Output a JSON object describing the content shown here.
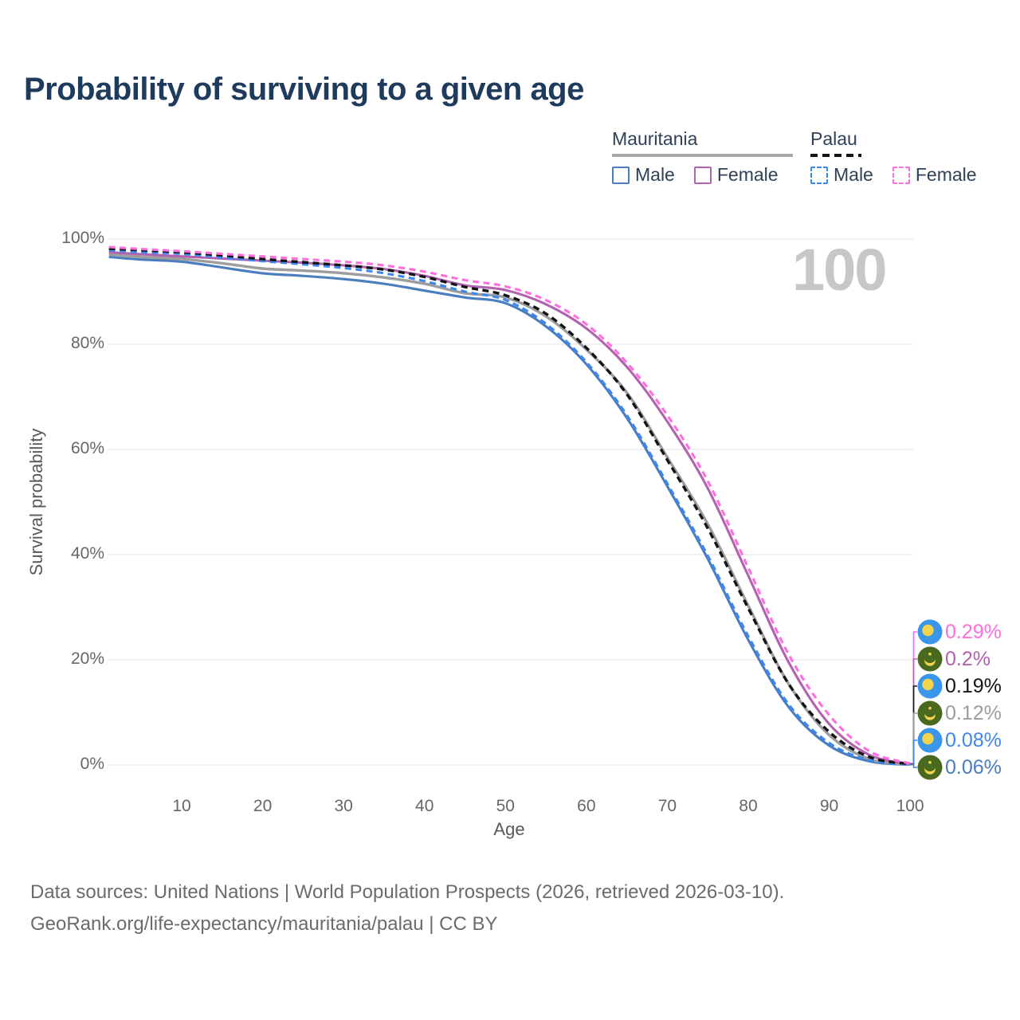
{
  "title": "Probability of surviving to a given age",
  "watermark": "100",
  "legend": {
    "groups": [
      {
        "country": "Mauritania",
        "line_style": "solid",
        "underline_color": "#a8a8a8",
        "items": [
          {
            "label": "Male",
            "color": "#4a7dbe"
          },
          {
            "label": "Female",
            "color": "#b163af"
          }
        ]
      },
      {
        "country": "Palau",
        "line_style": "dashed",
        "underline_color": "#141414",
        "items": [
          {
            "label": "Male",
            "color": "#3e86f0"
          },
          {
            "label": "Female",
            "color": "#ff6ede"
          }
        ]
      }
    ]
  },
  "y_axis": {
    "title": "Survival probability",
    "ticks": [
      "100%",
      "80%",
      "60%",
      "40%",
      "20%",
      "0%"
    ]
  },
  "x_axis": {
    "title": "Age",
    "ticks": [
      "10",
      "20",
      "30",
      "40",
      "50",
      "60",
      "70",
      "80",
      "90",
      "100"
    ]
  },
  "annotations": [
    {
      "flag": "palau",
      "series": "Palau Female",
      "label": "0.29%",
      "color": "#ff6ede"
    },
    {
      "flag": "mauritania",
      "series": "Mauritania Female",
      "label": "0.2%",
      "color": "#b163af"
    },
    {
      "flag": "palau",
      "series": "Palau Both sexes",
      "label": "0.19%",
      "color": "#141414"
    },
    {
      "flag": "mauritania",
      "series": "Mauritania Both sexes",
      "label": "0.12%",
      "color": "#9d9d9d"
    },
    {
      "flag": "palau",
      "series": "Palau Male",
      "label": "0.08%",
      "color": "#3e86f0"
    },
    {
      "flag": "mauritania",
      "series": "Mauritania Male",
      "label": "0.06%",
      "color": "#4a7dbe"
    }
  ],
  "footer": {
    "line1": "Data sources: United Nations | World Population Prospects (2026, retrieved 2026-03-10).",
    "line2": "GeoRank.org/life-expectancy/mauritania/palau | CC BY"
  },
  "flag_colors": {
    "palau_blue": "#3a96e8",
    "mauritania_green": "#48691e",
    "yellow": "#f5d44d"
  },
  "chart_data": {
    "type": "line",
    "title": "Probability of surviving to a given age",
    "xlabel": "Age",
    "ylabel": "Survival probability",
    "xlim": [
      0,
      100
    ],
    "ylim": [
      0,
      100
    ],
    "grid": "horizontal",
    "legend_position": "top-right",
    "x_ages": [
      1,
      5,
      10,
      15,
      20,
      25,
      30,
      35,
      40,
      45,
      50,
      55,
      60,
      65,
      70,
      75,
      80,
      85,
      90,
      95,
      100
    ],
    "series": [
      {
        "name": "Mauritania Male",
        "country": "Mauritania",
        "sex": "Male",
        "style": "solid",
        "color": "#4a7dbe",
        "values_pct": [
          96.6,
          96.1,
          95.7,
          94.6,
          93.5,
          93.0,
          92.4,
          91.5,
          90.2,
          88.9,
          87.8,
          83.4,
          76.2,
          66.0,
          53.0,
          39.2,
          23.8,
          11.0,
          3.7,
          0.7,
          0.06
        ]
      },
      {
        "name": "Mauritania Both sexes",
        "country": "Mauritania",
        "sex": "Both",
        "style": "solid",
        "color": "#9d9d9d",
        "values_pct": [
          97.1,
          96.6,
          96.2,
          95.4,
          94.4,
          94.0,
          93.5,
          92.7,
          91.5,
          89.7,
          88.9,
          85.3,
          79.0,
          70.8,
          58.5,
          45.8,
          30.3,
          15.4,
          5.7,
          1.1,
          0.12
        ]
      },
      {
        "name": "Mauritania Female",
        "country": "Mauritania",
        "sex": "Female",
        "style": "solid",
        "color": "#b163af",
        "values_pct": [
          97.5,
          97.1,
          96.7,
          96.3,
          95.9,
          95.5,
          95.0,
          94.3,
          93.0,
          91.2,
          90.3,
          87.6,
          83.0,
          75.7,
          65.3,
          52.6,
          36.0,
          19.5,
          7.8,
          1.9,
          0.2
        ]
      },
      {
        "name": "Palau Male",
        "country": "Palau",
        "sex": "Male",
        "style": "dashed",
        "color": "#3e86f0",
        "values_pct": [
          97.9,
          97.5,
          97.2,
          96.5,
          95.8,
          95.2,
          94.5,
          93.5,
          92.0,
          90.0,
          88.4,
          83.9,
          76.6,
          66.5,
          53.5,
          39.8,
          24.5,
          11.5,
          4.2,
          0.9,
          0.08
        ]
      },
      {
        "name": "Palau Both sexes",
        "country": "Palau",
        "sex": "Both",
        "style": "dashed",
        "color": "#141414",
        "values_pct": [
          98.2,
          97.9,
          97.5,
          96.9,
          96.2,
          95.6,
          95.0,
          94.2,
          92.8,
          90.9,
          89.3,
          85.8,
          79.3,
          70.5,
          58.0,
          45.0,
          29.8,
          15.4,
          6.3,
          1.5,
          0.19
        ]
      },
      {
        "name": "Palau Female",
        "country": "Palau",
        "sex": "Female",
        "style": "dashed",
        "color": "#ff6ede",
        "values_pct": [
          98.5,
          98.1,
          97.7,
          97.2,
          96.7,
          96.2,
          95.7,
          95.0,
          93.8,
          92.2,
          91.0,
          88.4,
          83.8,
          76.5,
          66.5,
          54.0,
          37.5,
          21.0,
          9.5,
          2.6,
          0.29
        ]
      }
    ],
    "end_value_labels_pct": [
      0.29,
      0.2,
      0.19,
      0.12,
      0.08,
      0.06
    ]
  }
}
